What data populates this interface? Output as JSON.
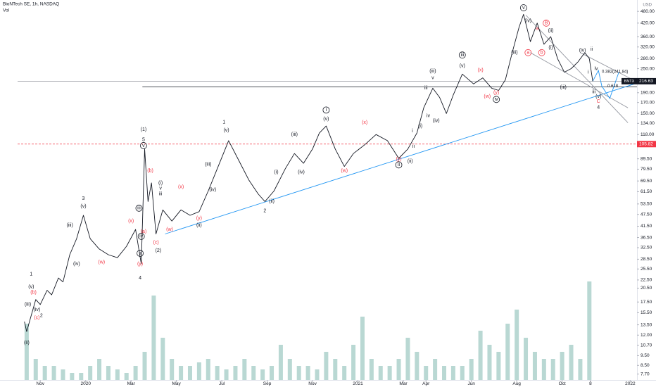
{
  "chart_data": {
    "type": "line",
    "title": "BioNTech SE, 1h, NASDAQ",
    "currency": "USD",
    "log_scale": true,
    "grid": false,
    "xlim": [
      0,
      27.3
    ],
    "ylim": [
      7.2,
      525
    ],
    "xticks": [
      {
        "value": 1,
        "label": "Nov"
      },
      {
        "value": 3,
        "label": "2020"
      },
      {
        "value": 5,
        "label": "Mar"
      },
      {
        "value": 7,
        "label": "May"
      },
      {
        "value": 9,
        "label": "Jul"
      },
      {
        "value": 11,
        "label": "Sep"
      },
      {
        "value": 13,
        "label": "Nov"
      },
      {
        "value": 15,
        "label": "2021"
      },
      {
        "value": 17,
        "label": "Mar"
      },
      {
        "value": 18,
        "label": "Apr"
      },
      {
        "value": 20,
        "label": "Jun"
      },
      {
        "value": 22,
        "label": "Aug"
      },
      {
        "value": 24,
        "label": "Oct"
      },
      {
        "value": 25.25,
        "label": "8"
      },
      {
        "value": 27,
        "label": "2022"
      }
    ],
    "yticks": [
      {
        "value": 480,
        "label": "480.00"
      },
      {
        "value": 420,
        "label": "420.00"
      },
      {
        "value": 360,
        "label": "360.00"
      },
      {
        "value": 320,
        "label": "320.00"
      },
      {
        "value": 280,
        "label": "280.00"
      },
      {
        "value": 250,
        "label": "250.00"
      },
      {
        "value": 190,
        "label": "190.00"
      },
      {
        "value": 170,
        "label": "170.00"
      },
      {
        "value": 150,
        "label": "150.00"
      },
      {
        "value": 134,
        "label": "134.00"
      },
      {
        "value": 118,
        "label": "118.00"
      },
      {
        "value": 89.5,
        "label": "89.50"
      },
      {
        "value": 79.5,
        "label": "79.50"
      },
      {
        "value": 69.5,
        "label": "69.50"
      },
      {
        "value": 61.5,
        "label": "61.50"
      },
      {
        "value": 53.5,
        "label": "53.50"
      },
      {
        "value": 47.5,
        "label": "47.50"
      },
      {
        "value": 41.5,
        "label": "41.50"
      },
      {
        "value": 36.5,
        "label": "36.50"
      },
      {
        "value": 32.5,
        "label": "32.50"
      },
      {
        "value": 28.5,
        "label": "28.50"
      },
      {
        "value": 25.5,
        "label": "25.50"
      },
      {
        "value": 22.5,
        "label": "22.50"
      },
      {
        "value": 20.5,
        "label": "20.50"
      },
      {
        "value": 17.5,
        "label": "17.50"
      },
      {
        "value": 15.5,
        "label": "15.50"
      },
      {
        "value": 13.5,
        "label": "13.50"
      },
      {
        "value": 12,
        "label": "12.00"
      },
      {
        "value": 10.7,
        "label": "10.70"
      },
      {
        "value": 9.5,
        "label": "9.50"
      },
      {
        "value": 8.5,
        "label": "8.50"
      },
      {
        "value": 7.7,
        "label": "7.70"
      }
    ],
    "series": [
      {
        "name": "BNTX",
        "color": "#131722",
        "x": [
          0.3,
          0.4,
          0.6,
          0.8,
          1.0,
          1.3,
          1.5,
          1.8,
          2.0,
          2.3,
          2.6,
          2.9,
          3.2,
          3.6,
          4.0,
          4.4,
          4.8,
          5.2,
          5.45,
          5.6,
          5.75,
          5.9,
          6.1,
          6.4,
          6.8,
          7.2,
          7.6,
          8.0,
          8.4,
          8.8,
          9.3,
          9.7,
          10.2,
          10.6,
          10.9,
          11.3,
          11.8,
          12.2,
          12.6,
          13.0,
          13.3,
          13.6,
          14.0,
          14.4,
          14.8,
          15.3,
          15.8,
          16.3,
          16.8,
          17.2,
          17.6,
          17.9,
          18.3,
          18.6,
          18.9,
          19.2,
          19.6,
          20.1,
          20.5,
          20.9,
          21.2,
          21.5,
          21.8,
          22.1,
          22.3,
          22.6,
          22.9,
          23.2,
          23.5,
          23.8,
          24.1,
          24.4,
          24.7,
          25.0,
          25.2,
          25.35
        ],
        "values": [
          14,
          12.5,
          15,
          18,
          17,
          20,
          19,
          23,
          22,
          30,
          36,
          47,
          36,
          32,
          30,
          29,
          33,
          40,
          27,
          100,
          55,
          68,
          38,
          50,
          44,
          50,
          47,
          49,
          62,
          80,
          110,
          90,
          70,
          60,
          55,
          62,
          80,
          95,
          85,
          100,
          120,
          130,
          100,
          82,
          95,
          105,
          118,
          110,
          90,
          100,
          120,
          160,
          200,
          180,
          150,
          185,
          235,
          210,
          225,
          200,
          195,
          220,
          300,
          400,
          464,
          340,
          420,
          330,
          360,
          280,
          240,
          250,
          270,
          300,
          280,
          216.63
        ]
      }
    ],
    "last_price": {
      "value": 216.63,
      "label": "216.63",
      "color": "#131722"
    },
    "levels": [
      {
        "value": 216.63,
        "color": "#9598a1",
        "from": 0
      },
      {
        "value": 203,
        "color": "#131722",
        "from": 5.5
      },
      {
        "value": 105.82,
        "label": "105.82",
        "color": "#f23645",
        "dashed": true,
        "from": 0
      }
    ],
    "volume": {
      "name": "Vol",
      "color": "#7fb8ae",
      "x": [
        0.4,
        0.8,
        1.2,
        1.6,
        2,
        2.4,
        2.8,
        3.2,
        3.6,
        4,
        4.4,
        4.8,
        5.2,
        5.6,
        6,
        6.4,
        6.8,
        7.2,
        7.6,
        8,
        8.4,
        8.8,
        9.2,
        9.6,
        10,
        10.4,
        10.8,
        11.2,
        11.6,
        12,
        12.4,
        12.8,
        13.2,
        13.6,
        14,
        14.4,
        14.8,
        15.2,
        15.6,
        16,
        16.4,
        16.8,
        17.2,
        17.6,
        18,
        18.4,
        18.8,
        19.2,
        19.6,
        20,
        20.4,
        20.8,
        21.2,
        21.6,
        22,
        22.4,
        22.8,
        23.2,
        23.6,
        24,
        24.4,
        24.8,
        25.2
      ],
      "values": [
        8,
        3,
        2,
        2,
        1.5,
        1,
        1,
        2,
        3,
        2,
        1.5,
        1,
        2,
        4,
        12,
        6,
        3,
        2,
        2,
        2.5,
        3,
        2,
        1.5,
        2,
        3,
        2,
        1.5,
        2,
        5,
        3,
        2,
        2,
        1.5,
        4,
        3,
        2,
        5,
        9,
        3,
        2,
        2,
        3,
        6,
        4,
        2,
        3,
        2,
        2,
        2,
        3,
        7,
        5,
        4,
        8,
        10,
        6,
        4,
        3,
        3,
        4,
        5,
        3,
        14
      ]
    },
    "trendlines": [
      {
        "color": "#2196f3",
        "x": [
          6.5,
          27.3
        ],
        "y": [
          38,
          212
        ]
      },
      {
        "color": "#9598a1",
        "x": [
          22.4,
          26.9
        ],
        "y": [
          460,
          135
        ]
      },
      {
        "color": "#9598a1",
        "x": [
          22.6,
          26.9
        ],
        "y": [
          300,
          160
        ]
      },
      {
        "color": "#9598a1",
        "x": [
          24.8,
          27.3
        ],
        "y": [
          300,
          215
        ]
      },
      {
        "color": "#2196f3",
        "x": [
          25.35,
          25.6,
          25.75,
          26.1,
          26.5
        ],
        "y": [
          216.63,
          245,
          205,
          178,
          240
        ]
      }
    ],
    "fib_labels": [
      {
        "text": "0.382(241.84)",
        "x": 25.75,
        "y": 241.84
      },
      {
        "text": "0.618",
        "x": 26.0,
        "y": 205
      }
    ],
    "annotations": [
      {
        "text": "1",
        "x": 0.6,
        "y": 24,
        "color": "#131722"
      },
      {
        "text": "(v)",
        "x": 0.6,
        "y": 20.8,
        "color": "#131722"
      },
      {
        "text": "(iii)",
        "x": 0.45,
        "y": 17,
        "color": "#131722"
      },
      {
        "text": "(ii)",
        "x": 0.4,
        "y": 11,
        "color": "#131722"
      },
      {
        "text": "(iv)",
        "x": 0.85,
        "y": 16,
        "color": "#131722"
      },
      {
        "text": "2",
        "x": 1.05,
        "y": 15,
        "color": "#131722"
      },
      {
        "text": "(b)",
        "x": 0.7,
        "y": 19.5,
        "color": "#f23645"
      },
      {
        "text": "(c)",
        "x": 0.85,
        "y": 14.6,
        "color": "#f23645"
      },
      {
        "text": "3",
        "x": 2.9,
        "y": 57,
        "color": "#131722"
      },
      {
        "text": "(v)",
        "x": 2.9,
        "y": 52,
        "color": "#131722"
      },
      {
        "text": "(iii)",
        "x": 2.3,
        "y": 42,
        "color": "#131722"
      },
      {
        "text": "(iv)",
        "x": 2.6,
        "y": 27,
        "color": "#131722"
      },
      {
        "text": "(w)",
        "x": 3.7,
        "y": 27.5,
        "color": "#f23645"
      },
      {
        "text": "(x)",
        "x": 5.0,
        "y": 44,
        "color": "#f23645"
      },
      {
        "text": "(a)",
        "x": 5.55,
        "y": 39,
        "color": "#f23645"
      },
      {
        "text": "4",
        "x": 5.4,
        "y": 23,
        "color": "#131722"
      },
      {
        "text": "(y)",
        "x": 5.4,
        "y": 27,
        "color": "#f23645"
      },
      {
        "text": "ii",
        "x": 5.4,
        "y": 30.5,
        "color": "#131722",
        "circled": true
      },
      {
        "text": "iv",
        "x": 5.45,
        "y": 37,
        "color": "#131722",
        "circled": true
      },
      {
        "text": "(1)",
        "x": 5.55,
        "y": 125,
        "color": "#131722"
      },
      {
        "text": "5",
        "x": 5.55,
        "y": 111,
        "color": "#131722"
      },
      {
        "text": "v",
        "x": 5.55,
        "y": 104,
        "color": "#131722",
        "circled": true
      },
      {
        "text": "iii",
        "x": 5.35,
        "y": 51,
        "color": "#131722",
        "circled": true
      },
      {
        "text": "(b)",
        "x": 5.85,
        "y": 78,
        "color": "#f23645"
      },
      {
        "text": "(c)",
        "x": 6.1,
        "y": 34.5,
        "color": "#f23645"
      },
      {
        "text": "(2)",
        "x": 6.2,
        "y": 31.5,
        "color": "#131722"
      },
      {
        "text": "(w)",
        "x": 6.7,
        "y": 40,
        "color": "#f23645"
      },
      {
        "text": "(i)",
        "x": 6.3,
        "y": 68,
        "color": "#131722"
      },
      {
        "text": "v",
        "x": 6.3,
        "y": 64,
        "color": "#131722"
      },
      {
        "text": "iii",
        "x": 6.3,
        "y": 60,
        "color": "#131722"
      },
      {
        "text": "(x)",
        "x": 7.2,
        "y": 65,
        "color": "#f23645"
      },
      {
        "text": "(y)",
        "x": 8.0,
        "y": 45.5,
        "color": "#f23645"
      },
      {
        "text": "(ii)",
        "x": 8.0,
        "y": 42,
        "color": "#131722"
      },
      {
        "text": "(iii)",
        "x": 8.4,
        "y": 84,
        "color": "#131722"
      },
      {
        "text": "(iv)",
        "x": 8.6,
        "y": 63,
        "color": "#131722"
      },
      {
        "text": "1",
        "x": 9.1,
        "y": 136,
        "color": "#131722"
      },
      {
        "text": "(v)",
        "x": 9.2,
        "y": 124,
        "color": "#131722"
      },
      {
        "text": "2",
        "x": 10.9,
        "y": 49.5,
        "color": "#131722"
      },
      {
        "text": "(ii)",
        "x": 11.2,
        "y": 55,
        "color": "#131722"
      },
      {
        "text": "(i)",
        "x": 11.4,
        "y": 77,
        "color": "#131722"
      },
      {
        "text": "(iii)",
        "x": 12.2,
        "y": 118,
        "color": "#131722"
      },
      {
        "text": "(iv)",
        "x": 12.5,
        "y": 77,
        "color": "#131722"
      },
      {
        "text": "i",
        "x": 13.6,
        "y": 156,
        "color": "#131722",
        "circled": true
      },
      {
        "text": "(v)",
        "x": 13.6,
        "y": 141,
        "color": "#131722"
      },
      {
        "text": "(w)",
        "x": 14.4,
        "y": 78,
        "color": "#f23645"
      },
      {
        "text": "(x)",
        "x": 15.3,
        "y": 135,
        "color": "#f23645"
      },
      {
        "text": "(y)",
        "x": 16.8,
        "y": 89,
        "color": "#f23645"
      },
      {
        "text": "ii",
        "x": 16.8,
        "y": 83.5,
        "color": "#131722",
        "circled": true
      },
      {
        "text": "(ii)",
        "x": 17.3,
        "y": 87,
        "color": "#131722"
      },
      {
        "text": "ii",
        "x": 17.45,
        "y": 103,
        "color": "#131722"
      },
      {
        "text": "i",
        "x": 17.4,
        "y": 123,
        "color": "#131722"
      },
      {
        "text": "(i)",
        "x": 17.75,
        "y": 130,
        "color": "#131722"
      },
      {
        "text": "iv",
        "x": 18.1,
        "y": 146,
        "color": "#131722"
      },
      {
        "text": "(iv)",
        "x": 18.45,
        "y": 138,
        "color": "#131722"
      },
      {
        "text": "iii",
        "x": 18.0,
        "y": 200,
        "color": "#131722"
      },
      {
        "text": "v",
        "x": 18.3,
        "y": 225,
        "color": "#131722"
      },
      {
        "text": "(iii)",
        "x": 18.3,
        "y": 243,
        "color": "#131722"
      },
      {
        "text": "iii",
        "x": 19.6,
        "y": 292,
        "color": "#131722",
        "circled": true
      },
      {
        "text": "(v)",
        "x": 19.6,
        "y": 258,
        "color": "#131722"
      },
      {
        "text": "(x)",
        "x": 20.4,
        "y": 246,
        "color": "#f23645"
      },
      {
        "text": "(w)",
        "x": 20.7,
        "y": 182,
        "color": "#f23645"
      },
      {
        "text": "(y)",
        "x": 21.1,
        "y": 190,
        "color": "#f23645"
      },
      {
        "text": "iv",
        "x": 21.1,
        "y": 176,
        "color": "#131722",
        "circled": true
      },
      {
        "text": "v",
        "x": 22.3,
        "y": 500,
        "color": "#131722",
        "circled": true
      },
      {
        "text": "(iii)",
        "x": 21.9,
        "y": 300,
        "color": "#131722"
      },
      {
        "text": "(iv)",
        "x": 22.5,
        "y": 430,
        "color": "#131722"
      },
      {
        "text": "a",
        "x": 22.9,
        "y": 395,
        "color": "#f23645"
      },
      {
        "text": "B",
        "x": 23.3,
        "y": 420,
        "color": "#f23645",
        "circled": true
      },
      {
        "text": "(ii)",
        "x": 23.5,
        "y": 385,
        "color": "#131722"
      },
      {
        "text": "a",
        "x": 22.5,
        "y": 300,
        "color": "#f23645",
        "circled": true
      },
      {
        "text": "b",
        "x": 23.1,
        "y": 300,
        "color": "#f23645",
        "circled": true
      },
      {
        "text": "(i)",
        "x": 23.5,
        "y": 318,
        "color": "#131722"
      },
      {
        "text": "(iii)",
        "x": 24.05,
        "y": 202,
        "color": "#131722"
      },
      {
        "text": "(iv)",
        "x": 24.9,
        "y": 308,
        "color": "#131722"
      },
      {
        "text": "ii",
        "x": 25.3,
        "y": 312,
        "color": "#131722"
      },
      {
        "text": "i",
        "x": 25.15,
        "y": 240,
        "color": "#131722"
      },
      {
        "text": "iv",
        "x": 25.5,
        "y": 250,
        "color": "#131722"
      },
      {
        "text": "iii",
        "x": 25.4,
        "y": 192,
        "color": "#131722"
      },
      {
        "text": "(v)",
        "x": 25.6,
        "y": 182,
        "color": "#131722"
      },
      {
        "text": "C",
        "x": 25.6,
        "y": 172,
        "color": "#f23645"
      },
      {
        "text": "4",
        "x": 25.6,
        "y": 161,
        "color": "#131722"
      }
    ]
  }
}
